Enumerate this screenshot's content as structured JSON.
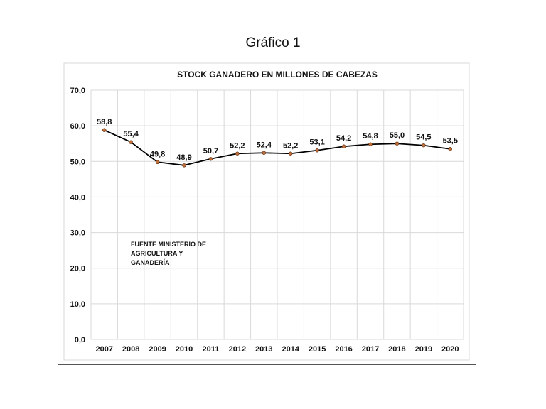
{
  "caption": "Gráfico 1",
  "chart_data": {
    "type": "line",
    "title": "STOCK GANADERO  EN  MILLONES  DE  CABEZAS",
    "xlabel": "",
    "ylabel": "",
    "categories": [
      "2007",
      "2008",
      "2009",
      "2010",
      "2011",
      "2012",
      "2013",
      "2014",
      "2015",
      "2016",
      "2017",
      "2018",
      "2019",
      "2020"
    ],
    "values": [
      58.8,
      55.4,
      49.8,
      48.9,
      50.7,
      52.2,
      52.4,
      52.2,
      53.1,
      54.2,
      54.8,
      55.0,
      54.5,
      53.5
    ],
    "data_labels": [
      "58,8",
      "55,4",
      "49,8",
      "48,9",
      "50,7",
      "52,2",
      "52,4",
      "52,2",
      "53,1",
      "54,2",
      "54,8",
      "55,0",
      "54,5",
      "53,5"
    ],
    "ylim": [
      0,
      70
    ],
    "yticks": [
      0,
      10,
      20,
      30,
      40,
      50,
      60,
      70
    ],
    "ytick_labels": [
      "0,0",
      "10,0",
      "20,0",
      "30,0",
      "40,0",
      "50,0",
      "60,0",
      "70,0"
    ],
    "grid": true,
    "legend": "none",
    "annotation": [
      "FUENTE MINISTERIO DE",
      "AGRICULTURA Y",
      "GANADERÍA"
    ],
    "colors": {
      "line": "#000000",
      "marker": "#c0703a",
      "grid": "#d9d9d9"
    }
  }
}
